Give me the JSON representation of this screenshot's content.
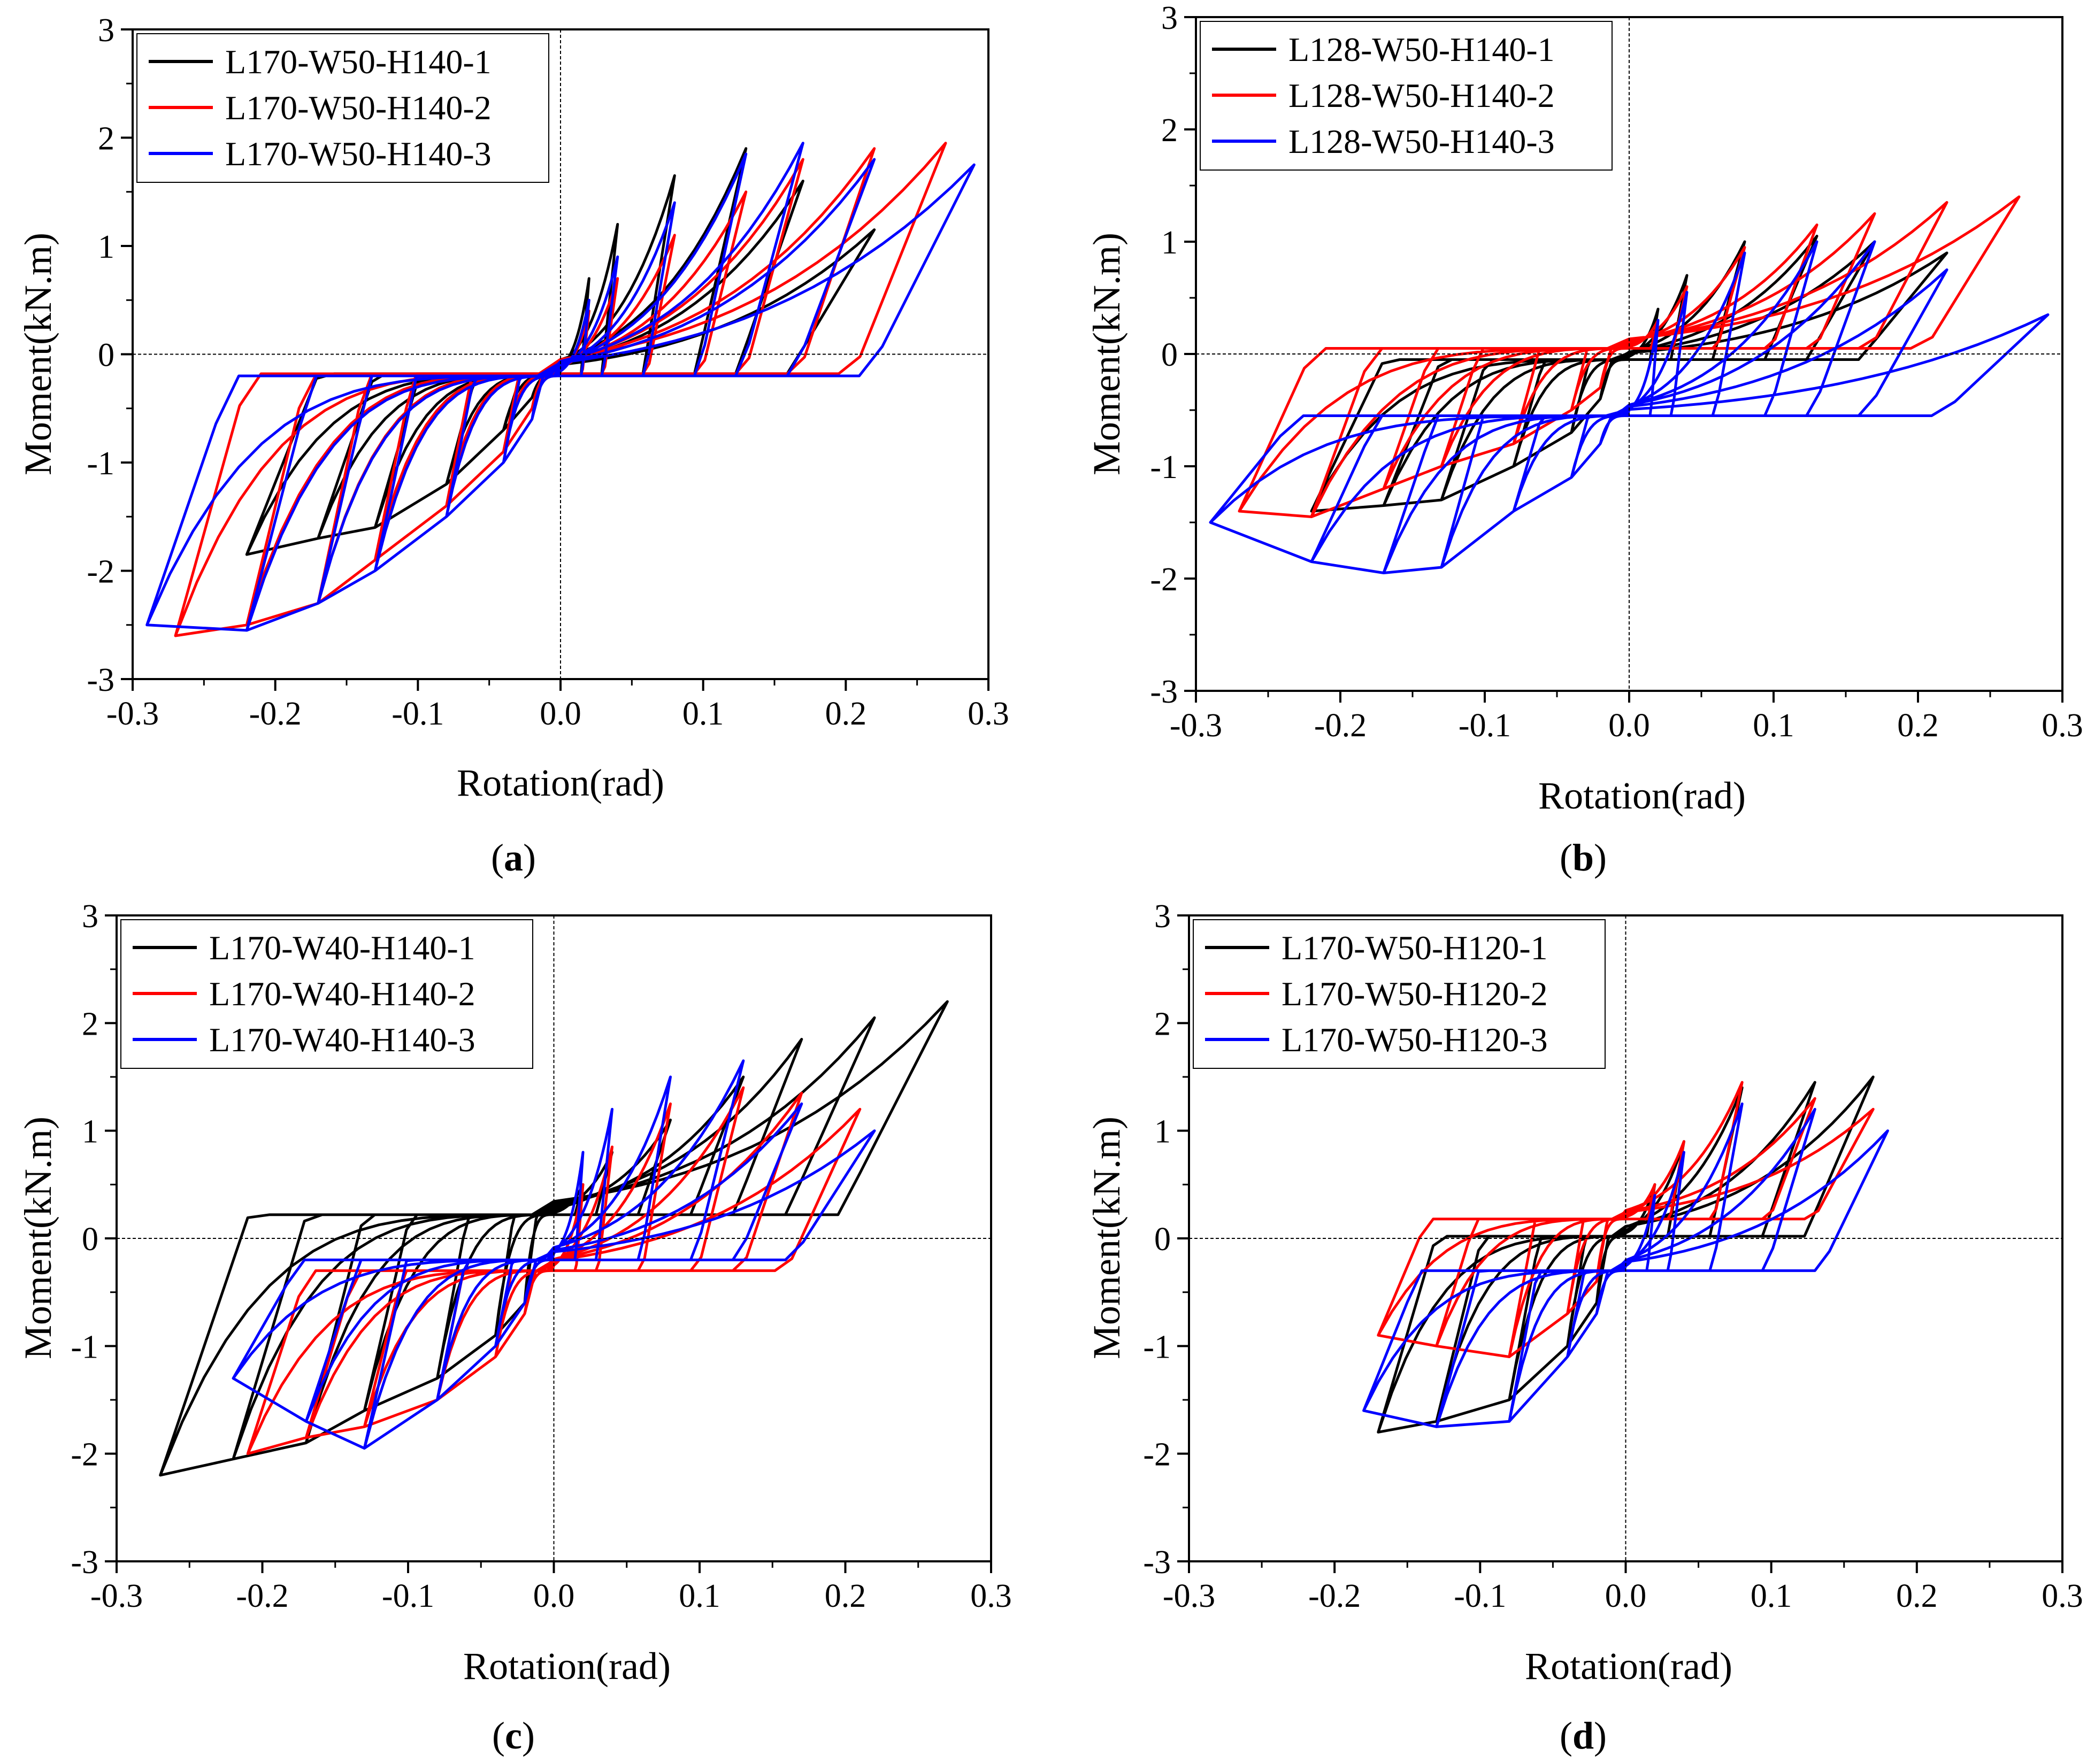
{
  "chart_data": [
    {
      "type": "line",
      "panel_label": "a",
      "xlabel": "Rotation(rad)",
      "ylabel": "Moment(kN.m)",
      "xlim": [
        -0.3,
        0.3
      ],
      "ylim": [
        -3,
        3
      ],
      "xticks": [
        "-0.3",
        "-0.2",
        "-0.1",
        "0.0",
        "0.1",
        "0.2",
        "0.3"
      ],
      "yticks": [
        "3",
        "2",
        "1",
        "0",
        "-1",
        "-2",
        "-3"
      ],
      "legend_position": "top-left",
      "series": [
        {
          "name": "L170-W50-H140-1",
          "color": "#000000",
          "amplitudes": [
            0.02,
            0.04,
            0.08,
            0.13,
            0.17,
            0.22
          ],
          "peak_positive": [
            0.7,
            1.2,
            1.65,
            1.9,
            1.6,
            1.15
          ],
          "peak_negative": [
            -0.4,
            -0.7,
            -1.2,
            -1.6,
            -1.7,
            -1.85
          ],
          "offset": -0.18,
          "shape": 0.6
        },
        {
          "name": "L170-W50-H140-2",
          "color": "#ff0000",
          "amplitudes": [
            0.02,
            0.04,
            0.08,
            0.13,
            0.17,
            0.22,
            0.27
          ],
          "peak_positive": [
            0.4,
            0.7,
            1.1,
            1.5,
            1.8,
            1.9,
            1.95
          ],
          "peak_negative": [
            -0.5,
            -0.9,
            -1.4,
            -1.9,
            -2.3,
            -2.5,
            -2.6
          ],
          "offset": -0.18,
          "shape": 0.5
        },
        {
          "name": "L170-W50-H140-3",
          "color": "#0000ff",
          "amplitudes": [
            0.02,
            0.04,
            0.08,
            0.13,
            0.17,
            0.22,
            0.29
          ],
          "peak_positive": [
            0.5,
            0.9,
            1.4,
            1.85,
            1.95,
            1.8,
            1.75
          ],
          "peak_negative": [
            -0.6,
            -1.0,
            -1.5,
            -2.0,
            -2.3,
            -2.55,
            -2.5
          ],
          "offset": -0.2,
          "shape": 0.55
        }
      ]
    },
    {
      "type": "line",
      "panel_label": "b",
      "xlabel": "Rotation(rad)",
      "ylabel": "Moment(kN.m)",
      "xlim": [
        -0.3,
        0.3
      ],
      "ylim": [
        -3,
        3
      ],
      "xticks": [
        "-0.3",
        "-0.2",
        "-0.1",
        "0.0",
        "0.1",
        "0.2",
        "0.3"
      ],
      "yticks": [
        "3",
        "2",
        "1",
        "0",
        "-1",
        "-2",
        "-3"
      ],
      "legend_position": "top-left",
      "series": [
        {
          "name": "L128-W50-H140-1",
          "color": "#000000",
          "amplitudes": [
            0.02,
            0.04,
            0.08,
            0.13,
            0.17,
            0.22
          ],
          "peak_positive": [
            0.4,
            0.7,
            1.0,
            1.05,
            1.0,
            0.9
          ],
          "peak_negative": [
            -0.4,
            -0.7,
            -1.0,
            -1.3,
            -1.35,
            -1.4
          ],
          "offset": -0.05,
          "shape": 0.6
        },
        {
          "name": "L128-W50-H140-2",
          "color": "#ff0000",
          "amplitudes": [
            0.02,
            0.04,
            0.08,
            0.13,
            0.17,
            0.22,
            0.27
          ],
          "peak_positive": [
            0.3,
            0.6,
            0.95,
            1.15,
            1.25,
            1.35,
            1.4
          ],
          "peak_negative": [
            -0.3,
            -0.5,
            -0.8,
            -1.0,
            -1.2,
            -1.45,
            -1.4
          ],
          "offset": 0.05,
          "shape": 0.5
        },
        {
          "name": "L128-W50-H140-3",
          "color": "#0000ff",
          "amplitudes": [
            0.02,
            0.04,
            0.08,
            0.13,
            0.17,
            0.22,
            0.29
          ],
          "peak_positive": [
            0.3,
            0.55,
            0.9,
            1.0,
            1.0,
            0.75,
            0.35
          ],
          "peak_negative": [
            -0.8,
            -1.1,
            -1.4,
            -1.9,
            -1.95,
            -1.85,
            -1.5
          ],
          "offset": -0.55,
          "shape": 0.55
        }
      ]
    },
    {
      "type": "line",
      "panel_label": "c",
      "xlabel": "Rotation(rad)",
      "ylabel": "Moment(kN.m)",
      "xlim": [
        -0.3,
        0.3
      ],
      "ylim": [
        -3,
        3
      ],
      "xticks": [
        "-0.3",
        "-0.2",
        "-0.1",
        "0.0",
        "0.1",
        "0.2",
        "0.3"
      ],
      "yticks": [
        "3",
        "2",
        "1",
        "0",
        "-1",
        "-2",
        "-3"
      ],
      "legend_position": "top-left",
      "series": [
        {
          "name": "L170-W40-H140-1",
          "color": "#000000",
          "amplitudes": [
            0.02,
            0.04,
            0.08,
            0.13,
            0.17,
            0.22,
            0.27
          ],
          "peak_positive": [
            0.5,
            0.8,
            1.1,
            1.5,
            1.85,
            2.05,
            2.2
          ],
          "peak_negative": [
            -0.6,
            -0.9,
            -1.3,
            -1.6,
            -1.9,
            -2.05,
            -2.2
          ],
          "offset": 0.22,
          "shape": 0.6
        },
        {
          "name": "L170-W40-H140-2",
          "color": "#ff0000",
          "amplitudes": [
            0.02,
            0.04,
            0.08,
            0.13,
            0.17,
            0.21
          ],
          "peak_positive": [
            0.5,
            0.85,
            1.25,
            1.4,
            1.35,
            1.2
          ],
          "peak_negative": [
            -0.7,
            -1.1,
            -1.5,
            -1.75,
            -1.85,
            -2.0
          ],
          "offset": -0.3,
          "shape": 0.5
        },
        {
          "name": "L170-W40-H140-3",
          "color": "#0000ff",
          "amplitudes": [
            0.02,
            0.04,
            0.08,
            0.13,
            0.17,
            0.22
          ],
          "peak_positive": [
            0.8,
            1.2,
            1.5,
            1.65,
            1.25,
            1.0
          ],
          "peak_negative": [
            -0.6,
            -1.0,
            -1.5,
            -1.95,
            -1.7,
            -1.3
          ],
          "offset": -0.2,
          "shape": 0.55
        }
      ]
    },
    {
      "type": "line",
      "panel_label": "d",
      "xlabel": "Rotation(rad)",
      "ylabel": "Moment(kN.m)",
      "xlim": [
        -0.3,
        0.3
      ],
      "ylim": [
        -3,
        3
      ],
      "xticks": [
        "-0.3",
        "-0.2",
        "-0.1",
        "0.0",
        "0.1",
        "0.2",
        "0.3"
      ],
      "yticks": [
        "3",
        "2",
        "1",
        "0",
        "-1",
        "-2",
        "-3"
      ],
      "legend_position": "top-left",
      "series": [
        {
          "name": "L170-W50-H120-1",
          "color": "#000000",
          "amplitudes": [
            0.02,
            0.04,
            0.08,
            0.13,
            0.17
          ],
          "peak_positive": [
            0.5,
            0.9,
            1.4,
            1.45,
            1.5
          ],
          "peak_negative": [
            -0.6,
            -1.0,
            -1.5,
            -1.7,
            -1.8
          ],
          "offset": 0.02,
          "shape": 0.6
        },
        {
          "name": "L170-W50-H120-2",
          "color": "#ff0000",
          "amplitudes": [
            0.02,
            0.04,
            0.08,
            0.13,
            0.17
          ],
          "peak_positive": [
            0.5,
            0.9,
            1.45,
            1.3,
            1.2
          ],
          "peak_negative": [
            -0.4,
            -0.7,
            -1.1,
            -1.0,
            -0.9
          ],
          "offset": 0.18,
          "shape": 0.5
        },
        {
          "name": "L170-W50-H120-3",
          "color": "#0000ff",
          "amplitudes": [
            0.02,
            0.04,
            0.08,
            0.13,
            0.18
          ],
          "peak_positive": [
            0.4,
            0.8,
            1.25,
            1.2,
            1.0
          ],
          "peak_negative": [
            -0.7,
            -1.1,
            -1.7,
            -1.75,
            -1.6
          ],
          "offset": -0.3,
          "shape": 0.55
        }
      ]
    }
  ]
}
